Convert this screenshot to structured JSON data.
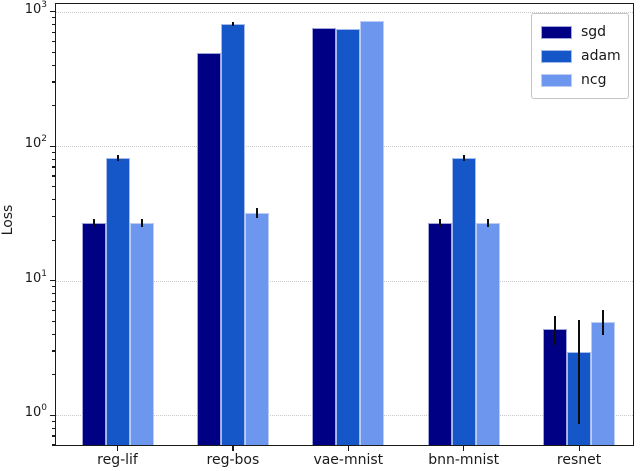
{
  "chart_data": {
    "type": "bar",
    "title": "",
    "xlabel": "",
    "ylabel": "Loss",
    "yscale": "log",
    "ylim": [
      0.6,
      1140
    ],
    "grid": "horizontal-dotted",
    "legend_position": "upper-right",
    "ytick_labels": [
      "10^0",
      "10^1",
      "10^2",
      "10^3"
    ],
    "ytick_exponents": [
      0,
      1,
      2,
      3
    ],
    "categories": [
      "reg-lif",
      "reg-bos",
      "vae-mnist",
      "bnn-mnist",
      "resnet"
    ],
    "series": [
      {
        "name": "sgd",
        "color": "#000084",
        "values": [
          27,
          490,
          760,
          27,
          4.35
        ],
        "err_lo": [
          25,
          490,
          760,
          25,
          3.35
        ],
        "err_hi": [
          29,
          490,
          760,
          29,
          5.5
        ]
      },
      {
        "name": "adam",
        "color": "#1557c8",
        "values": [
          82,
          810,
          745,
          82,
          2.95
        ],
        "err_lo": [
          78,
          780,
          745,
          78,
          0.86
        ],
        "err_hi": [
          86,
          840,
          745,
          86,
          5.1
        ]
      },
      {
        "name": "ncg",
        "color": "#6d96ee",
        "values": [
          27,
          32,
          860,
          27,
          4.9
        ],
        "err_lo": [
          25,
          29.5,
          860,
          25,
          3.95
        ],
        "err_hi": [
          29,
          35,
          860,
          29,
          6.1
        ]
      }
    ]
  }
}
